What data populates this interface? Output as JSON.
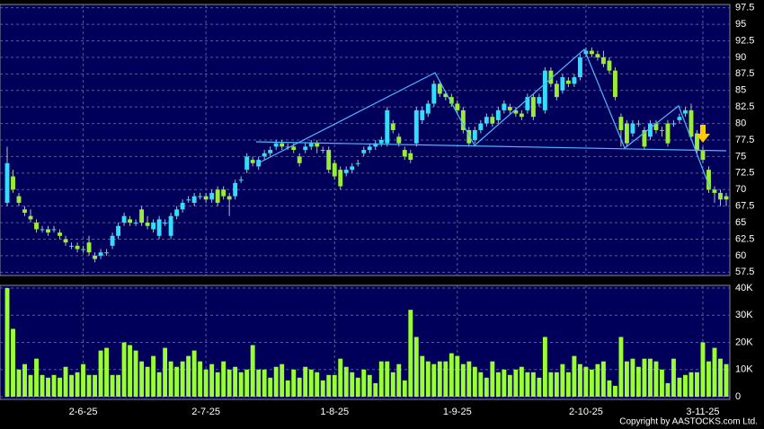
{
  "chart_data": {
    "type": "candlestick",
    "categories": [
      null,
      null,
      null,
      null,
      null,
      null,
      null,
      null,
      null,
      null,
      null,
      null,
      null,
      "2-6-25",
      null,
      null,
      null,
      null,
      null,
      null,
      null,
      null,
      null,
      null,
      null,
      null,
      null,
      null,
      null,
      null,
      null,
      null,
      null,
      null,
      "2-7-25",
      null,
      null,
      null,
      null,
      null,
      null,
      null,
      null,
      null,
      null,
      null,
      null,
      null,
      null,
      null,
      null,
      null,
      null,
      null,
      null,
      null,
      "1-8-25",
      null,
      null,
      null,
      null,
      null,
      null,
      null,
      null,
      null,
      null,
      null,
      null,
      null,
      null,
      null,
      null,
      null,
      null,
      null,
      null,
      "1-9-25",
      null,
      null,
      null,
      null,
      null,
      null,
      null,
      null,
      null,
      null,
      null,
      null,
      null,
      null,
      null,
      null,
      null,
      null,
      null,
      null,
      null,
      "2-10-25",
      null,
      null,
      null,
      null,
      null,
      null,
      null,
      null,
      null,
      null,
      null,
      null,
      null,
      null,
      null,
      null,
      null,
      null,
      null,
      "3-11-25",
      null,
      null,
      null,
      null
    ],
    "open": [
      68,
      72,
      69,
      67,
      66,
      65,
      64,
      64,
      64,
      63.5,
      62.5,
      61.5,
      61.5,
      61,
      62,
      60,
      60,
      60.5,
      61.5,
      63,
      65,
      65.5,
      65,
      67,
      65,
      64,
      63,
      65,
      63,
      66,
      67,
      68.5,
      68,
      69,
      69,
      68.5,
      70,
      70,
      69,
      69,
      71.5,
      73,
      74.5,
      73.5,
      75,
      75.5,
      76.5,
      77,
      76.5,
      76.5,
      75,
      76,
      76.5,
      77,
      76,
      76,
      74,
      73,
      72.5,
      73,
      74,
      75.5,
      76,
      76.5,
      77,
      77,
      80,
      78,
      76,
      75.5,
      77,
      80.5,
      81.5,
      83,
      86,
      84.5,
      84,
      83,
      82,
      79,
      77.5,
      79,
      80,
      81,
      80.5,
      82,
      82.5,
      82,
      81.5,
      82,
      84,
      83,
      82,
      88,
      86,
      85,
      86.5,
      86,
      87,
      90.5,
      91,
      90.5,
      90,
      89.5,
      88,
      81,
      80,
      78.5,
      80,
      79,
      78,
      80,
      79,
      80,
      80,
      80.5,
      81.5,
      82,
      78.5,
      76,
      73,
      70,
      69.5,
      69
    ],
    "high": [
      76.5,
      73,
      69.5,
      67.5,
      67,
      65.5,
      64.5,
      64.5,
      64.5,
      64,
      63,
      62,
      62,
      61.5,
      63,
      60.5,
      61,
      61,
      63.5,
      65,
      66.5,
      66,
      65.5,
      67.5,
      66,
      65.5,
      66,
      65.5,
      66.5,
      67.5,
      68.5,
      69,
      69.5,
      69.5,
      69.5,
      70,
      70.5,
      70.5,
      69.5,
      71.5,
      72,
      75.5,
      75,
      75,
      76,
      76.5,
      77.5,
      77.5,
      77,
      77,
      75.5,
      77,
      77.5,
      77.5,
      76.5,
      76.5,
      74.5,
      73.5,
      73.5,
      74,
      74.5,
      76.5,
      77,
      77.5,
      78,
      82.5,
      80.5,
      78.5,
      76.5,
      76,
      82.5,
      82.5,
      83.5,
      86.5,
      86.5,
      85,
      84.5,
      83.5,
      82.5,
      79.5,
      79.5,
      80.5,
      81.5,
      81.5,
      82.5,
      83.5,
      83,
      82.5,
      82,
      84.5,
      84.5,
      84.5,
      88.5,
      88.5,
      86.5,
      87.5,
      87,
      87.5,
      90.5,
      91.5,
      91.5,
      91,
      91,
      90,
      88.5,
      81.5,
      80.5,
      80.5,
      80.5,
      79.5,
      80.5,
      80.5,
      79.5,
      80.5,
      80.5,
      81.5,
      82.5,
      83,
      79,
      76.5,
      73.5,
      70.5,
      70,
      69.5
    ],
    "low": [
      67.5,
      69.5,
      67.5,
      66,
      65,
      63.5,
      63.5,
      63,
      63.5,
      62.5,
      61.5,
      61,
      60.5,
      60.5,
      60,
      59,
      59.5,
      60,
      61,
      62.5,
      64.5,
      64.5,
      64.5,
      64.5,
      64,
      63.5,
      62.5,
      64.5,
      62.5,
      65.5,
      66.5,
      68,
      67.5,
      68.5,
      68,
      68,
      67.5,
      68.5,
      66,
      68.5,
      71,
      72.5,
      73.5,
      73,
      74.5,
      75,
      76,
      76,
      76,
      75.5,
      73.5,
      75.5,
      76,
      75.5,
      75.5,
      72.5,
      71.5,
      70,
      72,
      72.5,
      73.5,
      75,
      75.5,
      76,
      76.5,
      76.5,
      78.5,
      76.5,
      74.5,
      74,
      76.5,
      80,
      81,
      82.5,
      84,
      83.5,
      82.5,
      81.5,
      78.5,
      76.5,
      77,
      78.5,
      79.5,
      79.5,
      80,
      81.5,
      81.5,
      81,
      80.5,
      81.5,
      80.5,
      82.5,
      81.5,
      85.5,
      83.5,
      84.5,
      85.5,
      85.5,
      86.5,
      90,
      90,
      89.5,
      88.5,
      87.5,
      83.5,
      76.5,
      76.5,
      78,
      79.5,
      76,
      77.5,
      78.5,
      78,
      76.5,
      79.5,
      80,
      81,
      77.5,
      75.5,
      74,
      69.5,
      68,
      67.5,
      67.5
    ],
    "close": [
      74,
      70,
      68,
      66.5,
      65.5,
      64,
      64,
      63.5,
      64,
      63,
      62,
      61.5,
      61,
      61,
      60.5,
      59.5,
      60.5,
      60.5,
      63,
      64.5,
      66,
      65,
      65,
      65,
      64.5,
      65,
      65.5,
      65,
      66,
      67,
      68,
      68.5,
      69,
      69,
      68.5,
      69.5,
      68,
      69,
      68.5,
      71,
      71.5,
      75,
      74,
      74.5,
      75.5,
      76,
      77,
      76.5,
      76.5,
      76,
      74,
      76.5,
      77,
      76.5,
      76,
      73,
      72,
      70.5,
      73,
      73.5,
      74,
      76,
      76.5,
      77,
      77.5,
      82,
      79,
      77,
      75,
      74.5,
      82,
      82,
      83,
      86,
      84.5,
      84,
      83,
      82,
      79,
      77,
      79,
      80,
      81,
      80,
      82,
      83,
      82,
      81.5,
      81,
      84,
      81,
      84,
      88,
      86,
      84,
      87,
      86,
      87,
      90,
      91,
      90.5,
      90,
      89,
      88,
      84,
      79,
      77,
      80,
      80,
      76.5,
      80,
      79,
      79,
      77,
      80,
      81,
      82,
      78,
      76,
      74.5,
      70,
      69.5,
      68.5,
      68.5
    ],
    "volume": [
      40000,
      25000,
      10000,
      12000,
      8000,
      14000,
      8000,
      7000,
      8000,
      7000,
      11000,
      8000,
      9000,
      12000,
      8000,
      8000,
      17000,
      18000,
      8000,
      8000,
      20000,
      19000,
      17000,
      13000,
      11000,
      15000,
      9000,
      18000,
      13000,
      11000,
      13000,
      15000,
      17000,
      13000,
      10000,
      12000,
      9000,
      13000,
      10000,
      11000,
      9000,
      10000,
      19000,
      10000,
      10000,
      7000,
      11000,
      12000,
      6000,
      10000,
      7000,
      11000,
      10000,
      9000,
      6000,
      8000,
      8000,
      14000,
      11000,
      9000,
      7000,
      10000,
      8000,
      5000,
      13000,
      13000,
      9000,
      12000,
      6000,
      32000,
      22000,
      15000,
      13000,
      12000,
      13000,
      13000,
      16000,
      15000,
      12000,
      13000,
      11000,
      9000,
      7000,
      13000,
      9000,
      10000,
      8000,
      10000,
      11000,
      9000,
      9000,
      7000,
      22000,
      9000,
      9000,
      12000,
      9000,
      15000,
      12000,
      11000,
      10000,
      12000,
      13000,
      6000,
      4000,
      22000,
      13000,
      14000,
      11000,
      14000,
      14000,
      13000,
      10000,
      5000,
      14000,
      7000,
      8000,
      9000,
      9000,
      20000,
      13000,
      18000,
      14000,
      12000
    ],
    "up_color": "#33ddff",
    "down_color": "#99ee33",
    "volume_color": "#99ff33",
    "ylim": [
      57,
      98
    ],
    "yticks": [
      57.5,
      60,
      62.5,
      65,
      67.5,
      70,
      72.5,
      75,
      77.5,
      80,
      82.5,
      85,
      87.5,
      90,
      92.5,
      95,
      97.5
    ],
    "y2lim": [
      0,
      41000
    ],
    "y2ticks": [
      0,
      {
        "value": 10000,
        "label": "10K"
      },
      {
        "value": 20000,
        "label": "20K"
      },
      {
        "value": 30000,
        "label": "30K"
      },
      {
        "value": 40000,
        "label": "40K"
      }
    ],
    "grid": true,
    "copyright": "Copyright by AASTOCKS.com Ltd."
  }
}
